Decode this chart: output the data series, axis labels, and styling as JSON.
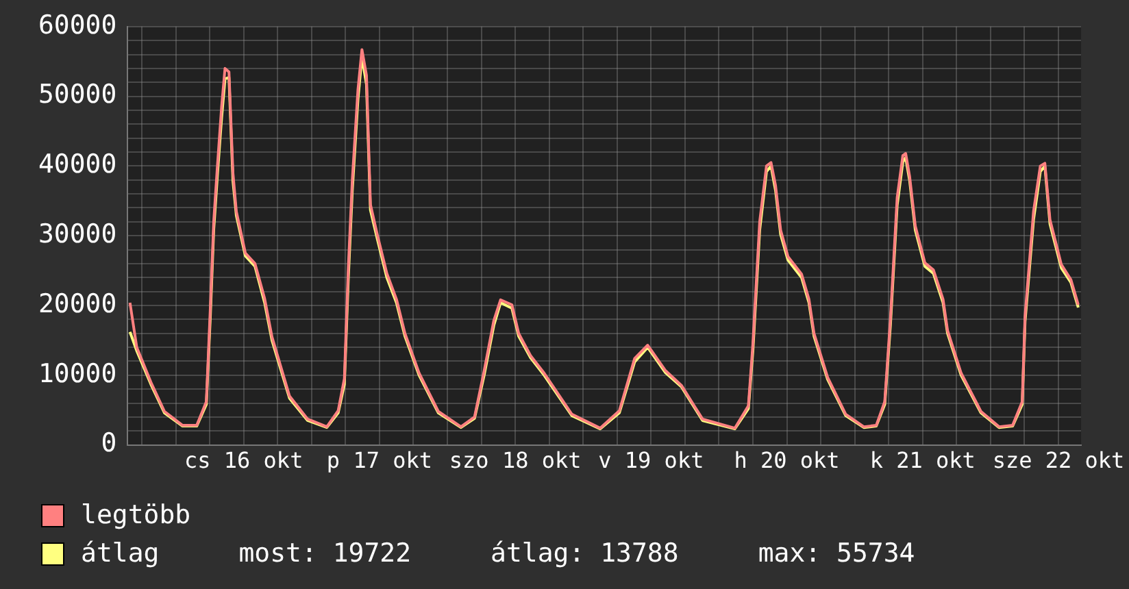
{
  "chart_data": {
    "type": "line",
    "x": [
      "--10-15T15:54",
      "--10-15T17:06",
      "--10-15T19:36",
      "--10-15T22:00",
      "--10-16T01:12",
      "--10-16T03:42",
      "--10-16T05:24",
      "--10-16T06:06",
      "--10-16T06:42",
      "--10-16T07:24",
      "--10-16T08:06",
      "--10-16T08:42",
      "--10-16T09:24",
      "--10-16T10:06",
      "--10-16T10:42",
      "--10-16T12:18",
      "--10-16T14:00",
      "--10-16T15:42",
      "--10-16T17:00",
      "--10-16T20:06",
      "--10-16T23:18",
      "--10-17T02:42",
      "--10-17T04:42",
      "--10-17T05:48",
      "--10-17T06:30",
      "--10-17T07:12",
      "--10-17T08:12",
      "--10-17T08:54",
      "--10-17T09:42",
      "--10-17T10:24",
      "--10-17T11:36",
      "--10-17T13:18",
      "--10-17T15:00",
      "--10-17T16:30",
      "--10-17T19:00",
      "--10-17T22:24",
      "--10-18T02:24",
      "--10-18T04:48",
      "--10-18T06:30",
      "--10-18T08:12",
      "--10-18T09:24",
      "--10-18T11:24",
      "--10-18T12:36",
      "--10-18T14:42",
      "--10-18T17:06",
      "--10-18T22:00",
      "--10-19T03:00",
      "--10-19T06:24",
      "--10-19T09:06",
      "--10-19T11:24",
      "--10-19T14:30",
      "--10-19T17:24",
      "--10-19T21:06",
      "--10-20T02:48",
      "--10-20T05:12",
      "--10-20T06:00",
      "--10-20T07:12",
      "--10-20T08:24",
      "--10-20T09:12",
      "--10-20T10:00",
      "--10-20T10:54",
      "--10-20T12:12",
      "--10-20T14:36",
      "--10-20T15:54",
      "--10-20T16:48",
      "--10-20T19:12",
      "--10-20T22:24",
      "--10-21T01:36",
      "--10-21T03:48",
      "--10-21T05:18",
      "--10-21T06:18",
      "--10-21T07:30",
      "--10-21T08:30",
      "--10-21T09:00",
      "--10-21T09:42",
      "--10-21T10:42",
      "--10-21T12:24",
      "--10-21T13:54",
      "--10-21T15:36",
      "--10-21T16:24",
      "--10-21T18:48",
      "--10-21T22:18",
      "--10-22T01:30",
      "--10-22T03:54",
      "--10-22T05:36",
      "--10-22T06:06",
      "--10-22T07:36",
      "--10-22T08:48",
      "--10-22T09:36",
      "--10-22T10:30",
      "--10-22T12:30",
      "--10-22T14:12",
      "--10-22T15:30"
    ],
    "series": [
      {
        "name": "legtöbb",
        "color": "#ff8080",
        "values": [
          20400,
          14000,
          9000,
          4800,
          2800,
          2800,
          6200,
          19500,
          32000,
          40500,
          48500,
          54000,
          53500,
          39000,
          33500,
          27500,
          26000,
          21000,
          15500,
          7000,
          3700,
          2600,
          4900,
          9500,
          25500,
          38000,
          51000,
          56700,
          53000,
          34500,
          30200,
          24600,
          20900,
          16000,
          10300,
          4800,
          2600,
          4000,
          10600,
          17800,
          20800,
          20100,
          16000,
          12800,
          10300,
          4400,
          2400,
          4900,
          12400,
          14300,
          10700,
          8500,
          3700,
          2400,
          5600,
          14500,
          32000,
          40000,
          40500,
          37200,
          30800,
          27000,
          24500,
          20900,
          16000,
          9700,
          4400,
          2600,
          2800,
          6200,
          18000,
          35500,
          41500,
          41800,
          38500,
          31400,
          26100,
          25100,
          20900,
          16400,
          10300,
          4800,
          2600,
          2800,
          6200,
          18500,
          33500,
          40000,
          40400,
          32300,
          25900,
          23700,
          20100
        ]
      },
      {
        "name": "átlag",
        "color": "#ffff80",
        "values": [
          16200,
          13500,
          8700,
          4600,
          2700,
          2700,
          5800,
          18300,
          30800,
          39200,
          46900,
          52500,
          52700,
          37900,
          32900,
          27100,
          25600,
          20400,
          15000,
          6700,
          3500,
          2500,
          4600,
          8700,
          24000,
          36500,
          49600,
          55700,
          51700,
          33700,
          29600,
          24000,
          20400,
          15600,
          10000,
          4600,
          2500,
          3800,
          10000,
          17100,
          20400,
          19600,
          15600,
          12500,
          10000,
          4200,
          2300,
          4600,
          11900,
          14000,
          10400,
          8300,
          3500,
          2300,
          5200,
          13500,
          30800,
          39200,
          40000,
          36500,
          30200,
          26500,
          24000,
          20400,
          15600,
          9400,
          4200,
          2500,
          2700,
          5800,
          17100,
          34400,
          40600,
          41200,
          37900,
          30800,
          25600,
          24600,
          20400,
          16000,
          10000,
          4600,
          2500,
          2700,
          5800,
          17700,
          32300,
          39200,
          40000,
          31700,
          25400,
          23300,
          19700
        ]
      }
    ],
    "xlim": [
      "--10-15T15:30",
      "--10-22T16:00"
    ],
    "xticks": [
      {
        "value": "--10-15T18:00",
        "label": null
      },
      {
        "value": "--10-16T00:00",
        "label": null
      },
      {
        "value": "--10-16T06:00",
        "label": null
      },
      {
        "value": "--10-16T12:00",
        "label": "cs 16 okt"
      },
      {
        "value": "--10-16T18:00",
        "label": null
      },
      {
        "value": "--10-17T00:00",
        "label": null
      },
      {
        "value": "--10-17T06:00",
        "label": null
      },
      {
        "value": "--10-17T12:00",
        "label": "p 17 okt"
      },
      {
        "value": "--10-17T18:00",
        "label": null
      },
      {
        "value": "--10-18T00:00",
        "label": null
      },
      {
        "value": "--10-18T06:00",
        "label": null
      },
      {
        "value": "--10-18T12:00",
        "label": "szo 18 okt"
      },
      {
        "value": "--10-18T18:00",
        "label": null
      },
      {
        "value": "--10-19T00:00",
        "label": null
      },
      {
        "value": "--10-19T06:00",
        "label": null
      },
      {
        "value": "--10-19T12:00",
        "label": "v 19 okt"
      },
      {
        "value": "--10-19T18:00",
        "label": null
      },
      {
        "value": "--10-20T00:00",
        "label": null
      },
      {
        "value": "--10-20T06:00",
        "label": null
      },
      {
        "value": "--10-20T12:00",
        "label": "h 20 okt"
      },
      {
        "value": "--10-20T18:00",
        "label": null
      },
      {
        "value": "--10-21T00:00",
        "label": null
      },
      {
        "value": "--10-21T06:00",
        "label": null
      },
      {
        "value": "--10-21T12:00",
        "label": "k 21 okt"
      },
      {
        "value": "--10-21T18:00",
        "label": null
      },
      {
        "value": "--10-22T00:00",
        "label": null
      },
      {
        "value": "--10-22T06:00",
        "label": null
      },
      {
        "value": "--10-22T12:00",
        "label": "sze 22 okt"
      }
    ],
    "ylim": [
      0,
      60000
    ],
    "yticks": [
      0,
      {
        "value": 2000,
        "label": null
      },
      {
        "value": 4000,
        "label": null
      },
      {
        "value": 6000,
        "label": null
      },
      {
        "value": 8000,
        "label": null
      },
      10000,
      {
        "value": 12000,
        "label": null
      },
      {
        "value": 14000,
        "label": null
      },
      {
        "value": 16000,
        "label": null
      },
      {
        "value": 18000,
        "label": null
      },
      20000,
      {
        "value": 22000,
        "label": null
      },
      {
        "value": 24000,
        "label": null
      },
      {
        "value": 26000,
        "label": null
      },
      {
        "value": 28000,
        "label": null
      },
      30000,
      {
        "value": 32000,
        "label": null
      },
      {
        "value": 34000,
        "label": null
      },
      {
        "value": 36000,
        "label": null
      },
      {
        "value": 38000,
        "label": null
      },
      40000,
      {
        "value": 42000,
        "label": null
      },
      {
        "value": 44000,
        "label": null
      },
      {
        "value": 46000,
        "label": null
      },
      {
        "value": 48000,
        "label": null
      },
      50000,
      {
        "value": 52000,
        "label": null
      },
      {
        "value": 54000,
        "label": null
      },
      {
        "value": 56000,
        "label": null
      },
      {
        "value": 58000,
        "label": null
      },
      60000
    ],
    "grid": true,
    "legend": "bottom left",
    "marker": "none",
    "annotations": [
      "most: 19722",
      "átlag: 13788",
      "max: 55734"
    ]
  }
}
